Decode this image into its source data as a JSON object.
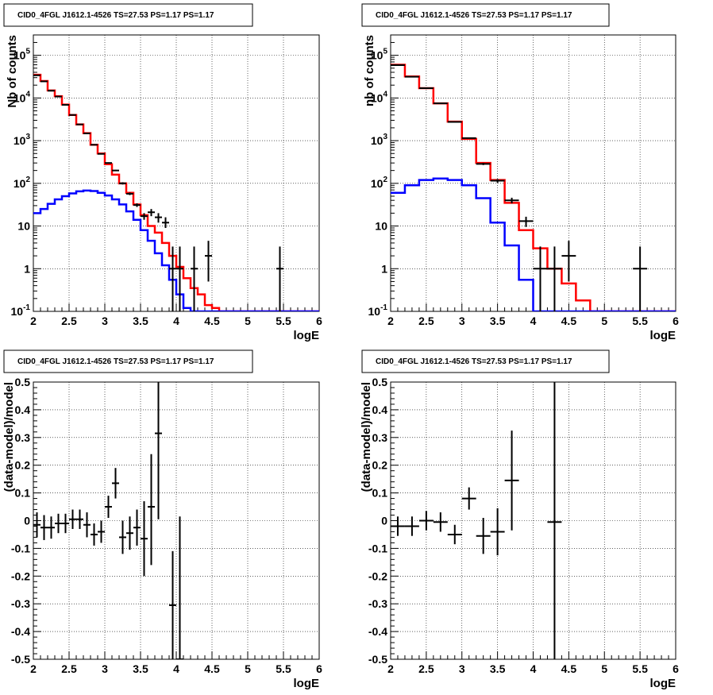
{
  "chart_data": [
    {
      "type": "line",
      "title": "CID0_4FGL J1612.1-4526 TS=27.53 PS=1.17 PS=1.17",
      "xlabel": "logE",
      "ylabel": "Nb of counts",
      "xlim": [
        2,
        6
      ],
      "ylim": [
        0.1,
        300000
      ],
      "yscale": "log",
      "grid": true,
      "x_ticks": [
        "2",
        "2.5",
        "3",
        "3.5",
        "4",
        "4.5",
        "5",
        "5.5",
        "6"
      ],
      "y_ticks": [
        "10^-1",
        "1",
        "10",
        "10^2",
        "10^3",
        "10^4",
        "10^5"
      ],
      "series": [
        {
          "color": "#ff0000",
          "kind": "step",
          "bin_edges": [
            2.0,
            2.1,
            2.2,
            2.3,
            2.4,
            2.5,
            2.6,
            2.7,
            2.8,
            2.9,
            3.0,
            3.1,
            3.2,
            3.3,
            3.4,
            3.5,
            3.6,
            3.7,
            3.8,
            3.9,
            4.0,
            4.1,
            4.2,
            4.3,
            4.4,
            4.5,
            4.6,
            4.7,
            4.8,
            4.9,
            5.0,
            5.1,
            5.2,
            5.3,
            5.4,
            5.5,
            5.6,
            5.7,
            5.8,
            5.9,
            6.0
          ],
          "values": [
            35000,
            25000,
            15000,
            11000,
            7000,
            4000,
            2400,
            1500,
            800,
            500,
            280,
            160,
            100,
            60,
            32,
            18,
            10,
            7,
            4,
            2,
            1.1,
            0.6,
            0.35,
            0.25,
            0.14,
            0.12,
            0.1,
            0.1,
            0.1,
            0.1,
            0.1,
            0.1,
            0.1,
            0.1,
            0.1,
            0.1,
            0.1,
            0.1,
            0.1,
            0.1
          ]
        },
        {
          "color": "#0000ff",
          "kind": "step",
          "bin_edges": [
            2.0,
            2.1,
            2.2,
            2.3,
            2.4,
            2.5,
            2.6,
            2.7,
            2.8,
            2.9,
            3.0,
            3.1,
            3.2,
            3.3,
            3.4,
            3.5,
            3.6,
            3.7,
            3.8,
            3.9,
            4.0,
            4.1,
            4.2,
            4.3,
            4.4,
            4.5,
            4.6,
            4.7,
            4.8,
            4.9,
            5.0,
            5.1,
            5.2,
            5.3,
            5.4,
            5.5,
            5.6,
            5.7,
            5.8,
            5.9,
            6.0
          ],
          "values": [
            20,
            25,
            33,
            42,
            50,
            58,
            65,
            68,
            66,
            60,
            52,
            42,
            32,
            22,
            14,
            8,
            4.5,
            2.3,
            1.2,
            0.55,
            0.25,
            0.12,
            0.1,
            0.1,
            0.1,
            0.1,
            0.1,
            0.1,
            0.1,
            0.1,
            0.1,
            0.1,
            0.1,
            0.1,
            0.1,
            0.1,
            0.1,
            0.1,
            0.1,
            0.1
          ]
        },
        {
          "color": "#000000",
          "kind": "points",
          "x": [
            2.05,
            2.15,
            2.25,
            2.35,
            2.45,
            2.55,
            2.65,
            2.75,
            2.85,
            2.95,
            3.05,
            3.15,
            3.25,
            3.35,
            3.45,
            3.55,
            3.65,
            3.75,
            3.85,
            3.95,
            4.05,
            4.25,
            4.45,
            5.45
          ],
          "y": [
            34000,
            24500,
            14800,
            10800,
            6900,
            4000,
            2400,
            1480,
            800,
            490,
            300,
            200,
            100,
            57,
            31,
            17,
            21,
            16,
            12,
            1,
            1,
            1,
            2,
            1
          ],
          "x_err": 0.05,
          "y_low": [
            33500,
            24200,
            14600,
            10600,
            6800,
            3900,
            2350,
            1440,
            780,
            475,
            290,
            193,
            94,
            53,
            28,
            14,
            17,
            12,
            9,
            0.1,
            0.1,
            0.1,
            0.5,
            0.1
          ],
          "y_high": [
            34500,
            24800,
            15000,
            11000,
            7000,
            4100,
            2450,
            1520,
            820,
            505,
            310,
            207,
            106,
            61,
            34,
            20,
            25,
            20,
            16,
            3.3,
            3.3,
            3.3,
            4.5,
            3.3
          ]
        }
      ]
    },
    {
      "type": "line",
      "title": "CID0_4FGL J1612.1-4526 TS=27.53 PS=1.17 PS=1.17",
      "xlabel": "logE",
      "ylabel": "nb of counts",
      "xlim": [
        2,
        6
      ],
      "ylim": [
        0.1,
        300000
      ],
      "yscale": "log",
      "grid": true,
      "x_ticks": [
        "2",
        "2.5",
        "3",
        "3.5",
        "4",
        "4.5",
        "5",
        "5.5",
        "6"
      ],
      "y_ticks": [
        "10^-1",
        "1",
        "10",
        "10^2",
        "10^3",
        "10^4",
        "10^5"
      ],
      "series": [
        {
          "color": "#ff0000",
          "kind": "step",
          "bin_edges": [
            2.0,
            2.2,
            2.4,
            2.6,
            2.8,
            3.0,
            3.2,
            3.4,
            3.6,
            3.8,
            4.0,
            4.2,
            4.4,
            4.6,
            4.8,
            5.0,
            5.2,
            5.4,
            5.6,
            5.8,
            6.0
          ],
          "values": [
            60000,
            32000,
            17000,
            7500,
            2800,
            1100,
            300,
            120,
            35,
            8,
            3,
            1,
            0.45,
            0.18,
            0.1,
            0.1,
            0.1,
            0.1,
            0.1,
            0.1
          ]
        },
        {
          "color": "#0000ff",
          "kind": "step",
          "bin_edges": [
            2.0,
            2.2,
            2.4,
            2.6,
            2.8,
            3.0,
            3.2,
            3.4,
            3.6,
            3.8,
            4.0,
            4.2,
            4.4,
            4.6,
            4.8,
            5.0,
            5.2,
            5.4,
            5.6,
            5.8,
            6.0
          ],
          "values": [
            60,
            90,
            120,
            130,
            120,
            90,
            45,
            12,
            3.5,
            0.55,
            0.1,
            0.1,
            0.1,
            0.1,
            0.1,
            0.1,
            0.1,
            0.1,
            0.1,
            0.1
          ]
        },
        {
          "color": "#000000",
          "kind": "points",
          "x": [
            2.1,
            2.3,
            2.5,
            2.7,
            2.9,
            3.1,
            3.3,
            3.5,
            3.7,
            3.9,
            4.1,
            4.3,
            4.5,
            5.5
          ],
          "y": [
            59000,
            31500,
            17000,
            7500,
            2750,
            1150,
            285,
            115,
            40,
            13,
            1,
            1,
            2,
            1
          ],
          "x_err": 0.1,
          "y_low": [
            58500,
            31200,
            16800,
            7400,
            2700,
            1120,
            268,
            104,
            34,
            9.5,
            0.1,
            0.1,
            0.5,
            0.1
          ],
          "y_high": [
            59500,
            31800,
            17200,
            7600,
            2800,
            1180,
            302,
            126,
            46,
            16.5,
            3.3,
            3.3,
            4.5,
            3.3
          ]
        }
      ]
    },
    {
      "type": "scatter",
      "title": "CID0_4FGL J1612.1-4526 TS=27.53 PS=1.17 PS=1.17",
      "xlabel": "logE",
      "ylabel": "(data-model)/model",
      "xlim": [
        2,
        6
      ],
      "ylim": [
        -0.5,
        0.5
      ],
      "grid": true,
      "x_ticks": [
        "2",
        "2.5",
        "3",
        "3.5",
        "4",
        "4.5",
        "5",
        "5.5",
        "6"
      ],
      "y_ticks": [
        "-0.5",
        "-0.4",
        "-0.3",
        "-0.2",
        "-0.1",
        "0",
        "0.1",
        "0.2",
        "0.3",
        "0.4",
        "0.5"
      ],
      "series": [
        {
          "color": "#000000",
          "kind": "points",
          "x": [
            2.05,
            2.15,
            2.25,
            2.35,
            2.45,
            2.55,
            2.65,
            2.75,
            2.85,
            2.95,
            3.05,
            3.15,
            3.25,
            3.35,
            3.45,
            3.55,
            3.65,
            3.75,
            3.95,
            4.05
          ],
          "y": [
            -0.015,
            -0.025,
            -0.025,
            -0.01,
            -0.01,
            0.005,
            0.005,
            -0.015,
            -0.05,
            -0.04,
            0.05,
            0.135,
            -0.06,
            -0.045,
            -0.025,
            -0.065,
            0.05,
            0.315,
            -0.305,
            -0.5
          ],
          "x_err": 0.05,
          "y_low": [
            -0.06,
            -0.07,
            -0.065,
            -0.045,
            -0.045,
            -0.03,
            -0.03,
            -0.06,
            -0.09,
            -0.08,
            0.01,
            0.08,
            -0.12,
            -0.105,
            -0.09,
            -0.2,
            -0.16,
            0.005,
            -0.5,
            -0.5
          ],
          "y_high": [
            0.03,
            0.02,
            0.015,
            0.025,
            0.025,
            0.04,
            0.04,
            0.03,
            -0.01,
            0.0,
            0.09,
            0.19,
            0.0,
            0.015,
            0.04,
            0.07,
            0.24,
            0.5,
            -0.11,
            0.015
          ]
        }
      ]
    },
    {
      "type": "scatter",
      "title": "CID0_4FGL J1612.1-4526 TS=27.53 PS=1.17 PS=1.17",
      "xlabel": "logE",
      "ylabel": "(data-model)/model",
      "xlim": [
        2,
        6
      ],
      "ylim": [
        -0.5,
        0.5
      ],
      "grid": true,
      "x_ticks": [
        "2",
        "2.5",
        "3",
        "3.5",
        "4",
        "4.5",
        "5",
        "5.5",
        "6"
      ],
      "y_ticks": [
        "-0.5",
        "-0.4",
        "-0.3",
        "-0.2",
        "-0.1",
        "0",
        "0.1",
        "0.2",
        "0.3",
        "0.4",
        "0.5"
      ],
      "series": [
        {
          "color": "#000000",
          "kind": "points",
          "x": [
            2.1,
            2.3,
            2.5,
            2.7,
            2.9,
            3.1,
            3.3,
            3.5,
            3.7,
            4.3
          ],
          "y": [
            -0.02,
            -0.02,
            0.0,
            -0.005,
            -0.05,
            0.08,
            -0.055,
            -0.04,
            0.145,
            -0.005
          ],
          "x_err": 0.1,
          "y_low": [
            -0.055,
            -0.055,
            -0.035,
            -0.04,
            -0.085,
            0.04,
            -0.12,
            -0.125,
            -0.035,
            -0.5
          ],
          "y_high": [
            0.015,
            0.015,
            0.035,
            0.03,
            -0.015,
            0.12,
            0.01,
            0.045,
            0.325,
            0.5
          ]
        }
      ]
    }
  ]
}
